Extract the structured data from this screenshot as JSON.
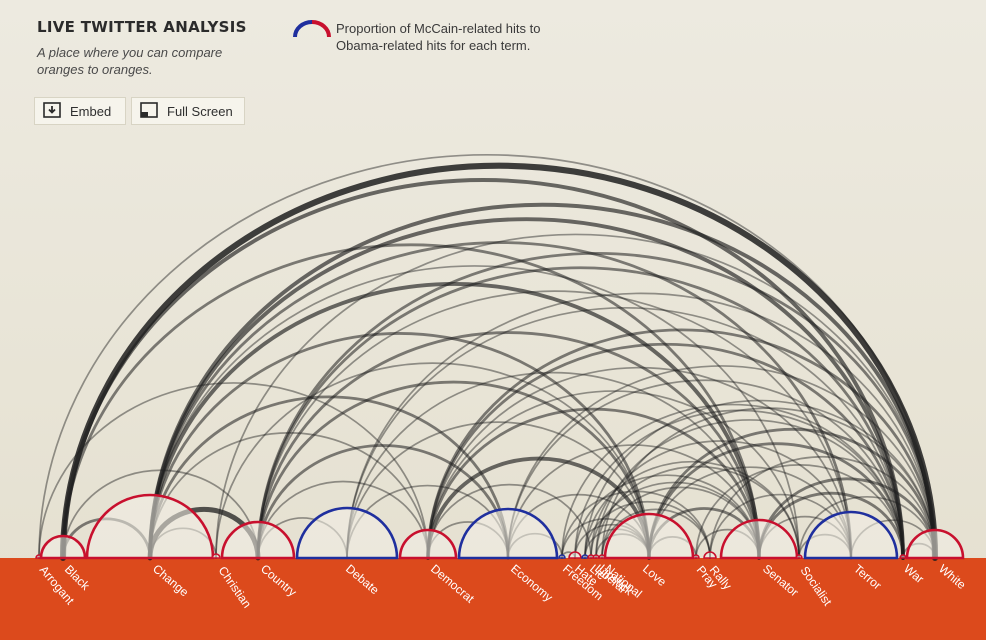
{
  "header": {
    "title": "LIVE TWITTER ANALYSIS",
    "subtitle": "A place where you can compare oranges to oranges.",
    "embed_label": "Embed",
    "fullscreen_label": "Full Screen"
  },
  "legend": {
    "text": "Proportion of McCain-related hits to Obama-related hits for each term.",
    "mccain_color": "#c8102e",
    "obama_color": "#1f2f9e"
  },
  "colors": {
    "background": "#ebe8dc",
    "baseline_band": "#dc4a1c",
    "arc": "#1e1e1e"
  },
  "terms": [
    {
      "label": "Arrogant",
      "side": "mccain",
      "relative_size": 0.01
    },
    {
      "label": "Black",
      "side": "mccain",
      "relative_size": 0.11
    },
    {
      "label": "Change",
      "side": "mccain",
      "relative_size": 0.86
    },
    {
      "label": "Christian",
      "side": "mccain",
      "relative_size": 0.02
    },
    {
      "label": "Country",
      "side": "mccain",
      "relative_size": 0.42
    },
    {
      "label": "Debate",
      "side": "obama",
      "relative_size": 0.75
    },
    {
      "label": "Democrat",
      "side": "mccain",
      "relative_size": 0.25
    },
    {
      "label": "Economy",
      "side": "obama",
      "relative_size": 0.73
    },
    {
      "label": "Freedom",
      "side": "obama",
      "relative_size": 0.01
    },
    {
      "label": "Hate",
      "side": "mccain",
      "relative_size": 0.02
    },
    {
      "label": "Lie",
      "side": "obama",
      "relative_size": 0.01
    },
    {
      "label": "Liberal",
      "side": "mccain",
      "relative_size": 0.01
    },
    {
      "label": "Lipstick",
      "side": "mccain",
      "relative_size": 0.01
    },
    {
      "label": "Love",
      "side": "mccain",
      "relative_size": 0.7
    },
    {
      "label": "National",
      "side": "mccain",
      "relative_size": 0.01
    },
    {
      "label": "Pray",
      "side": "mccain",
      "relative_size": 0.01
    },
    {
      "label": "Rally",
      "side": "mccain",
      "relative_size": 0.02
    },
    {
      "label": "Senator",
      "side": "mccain",
      "relative_size": 0.57
    },
    {
      "label": "Socialist",
      "side": "mccain",
      "relative_size": 0.01
    },
    {
      "label": "Terror",
      "side": "obama",
      "relative_size": 0.64
    },
    {
      "label": "War",
      "side": "mccain",
      "relative_size": 0.01
    },
    {
      "label": "White",
      "side": "mccain",
      "relative_size": 0.38
    }
  ],
  "links": [
    [
      "Black",
      "White",
      5
    ],
    [
      "Black",
      "War",
      3
    ],
    [
      "Change",
      "White",
      3
    ],
    [
      "Change",
      "War",
      3
    ],
    [
      "Change",
      "Terror",
      2
    ],
    [
      "Change",
      "Senator",
      3
    ],
    [
      "Change",
      "Love",
      2
    ],
    [
      "Change",
      "Economy",
      2
    ],
    [
      "Change",
      "Democrat",
      1
    ],
    [
      "Change",
      "Country",
      4
    ],
    [
      "Change",
      "Christian",
      1
    ],
    [
      "Country",
      "White",
      2
    ],
    [
      "Country",
      "War",
      2
    ],
    [
      "Country",
      "Terror",
      1
    ],
    [
      "Country",
      "Senator",
      2
    ],
    [
      "Country",
      "Love",
      2
    ],
    [
      "Country",
      "Economy",
      2
    ],
    [
      "Country",
      "Democrat",
      1
    ],
    [
      "Country",
      "Debate",
      1
    ],
    [
      "Debate",
      "White",
      1
    ],
    [
      "Debate",
      "Senator",
      1
    ],
    [
      "Debate",
      "Love",
      1
    ],
    [
      "Democrat",
      "White",
      2
    ],
    [
      "Democrat",
      "War",
      2
    ],
    [
      "Democrat",
      "Terror",
      1
    ],
    [
      "Democrat",
      "Senator",
      2
    ],
    [
      "Democrat",
      "Love",
      3
    ],
    [
      "Democrat",
      "Socialist",
      1
    ],
    [
      "Democrat",
      "Liberal",
      1
    ],
    [
      "Democrat",
      "Economy",
      1
    ],
    [
      "Economy",
      "White",
      1
    ],
    [
      "Economy",
      "Senator",
      1
    ],
    [
      "Economy",
      "War",
      1
    ],
    [
      "Economy",
      "Love",
      1
    ],
    [
      "Economy",
      "Freedom",
      1
    ],
    [
      "Freedom",
      "Love",
      1
    ],
    [
      "Freedom",
      "Rally",
      1
    ],
    [
      "Freedom",
      "War",
      1
    ],
    [
      "Hate",
      "Love",
      1
    ],
    [
      "Hate",
      "War",
      1
    ],
    [
      "Hate",
      "Senator",
      1
    ],
    [
      "Lie",
      "Love",
      1
    ],
    [
      "Lie",
      "White",
      1
    ],
    [
      "Lie",
      "Socialist",
      1
    ],
    [
      "Liberal",
      "Senator",
      1
    ],
    [
      "Liberal",
      "Terror",
      1
    ],
    [
      "Lipstick",
      "Love",
      1
    ],
    [
      "Lipstick",
      "Socialist",
      1
    ],
    [
      "Lipstick",
      "War",
      1
    ],
    [
      "National",
      "White",
      1
    ],
    [
      "National",
      "Rally",
      1
    ],
    [
      "National",
      "Senator",
      1
    ],
    [
      "Love",
      "White",
      2
    ],
    [
      "Love",
      "War",
      2
    ],
    [
      "Love",
      "Terror",
      1
    ],
    [
      "Love",
      "Senator",
      2
    ],
    [
      "Love",
      "Pray",
      1
    ],
    [
      "Pray",
      "Senator",
      1
    ],
    [
      "Pray",
      "War",
      1
    ],
    [
      "Rally",
      "Terror",
      1
    ],
    [
      "Rally",
      "White",
      1
    ],
    [
      "Senator",
      "White",
      2
    ],
    [
      "Senator",
      "War",
      2
    ],
    [
      "Senator",
      "Terror",
      1
    ],
    [
      "Socialist",
      "Terror",
      1
    ],
    [
      "Socialist",
      "White",
      1
    ],
    [
      "Terror",
      "White",
      1
    ],
    [
      "War",
      "White",
      1
    ],
    [
      "Black",
      "Change",
      2
    ],
    [
      "Arrogant",
      "White",
      1
    ],
    [
      "Arrogant",
      "Democrat",
      1
    ],
    [
      "Christian",
      "Love",
      1
    ],
    [
      "Christian",
      "White",
      1
    ],
    [
      "Black",
      "Senator",
      2
    ],
    [
      "Black",
      "Country",
      1
    ],
    [
      "Change",
      "Socialist",
      1
    ],
    [
      "Debate",
      "War",
      1
    ],
    [
      "Debate",
      "Economy",
      1
    ],
    [
      "Hate",
      "Freedom",
      1
    ],
    [
      "Lie",
      "Rally",
      1
    ]
  ]
}
